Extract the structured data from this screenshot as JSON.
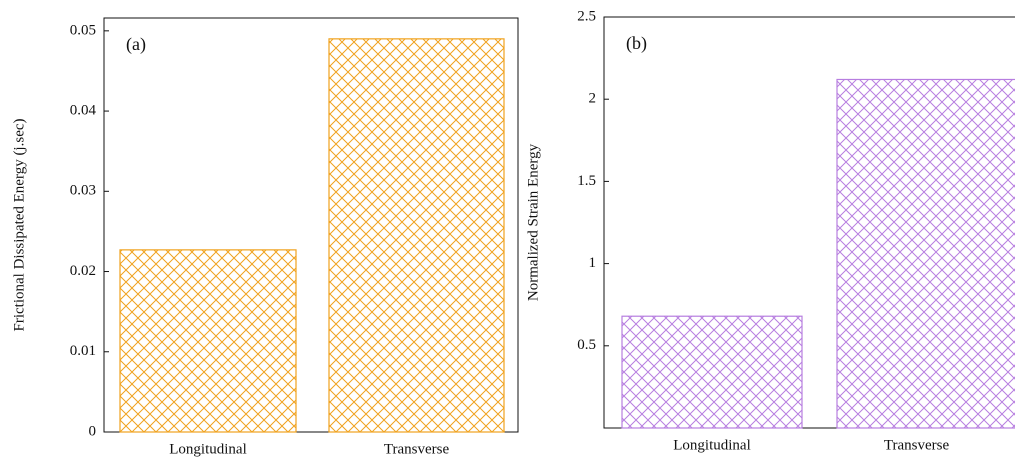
{
  "chart_data": [
    {
      "type": "bar",
      "annotation": "(a)",
      "y_label": "Frictional Dissipated Energy (j.sec)",
      "categories": [
        "Longitudinal",
        "Transverse"
      ],
      "values": [
        0.0227,
        0.049
      ],
      "color": "#f0a21e",
      "ylim": [
        0,
        0.0516
      ],
      "yticks": [
        0,
        0.01,
        0.02,
        0.03,
        0.04,
        0.05
      ]
    },
    {
      "type": "bar",
      "annotation": "(b)",
      "y_label": "Normalized Strain Energy",
      "categories": [
        "Longitudinal",
        "Transverse"
      ],
      "values": [
        0.68,
        2.12
      ],
      "color": "#b77ee0",
      "ylim": [
        0,
        2.5
      ],
      "yticks": [
        0.5,
        1,
        1.5,
        2,
        2.5
      ]
    }
  ]
}
